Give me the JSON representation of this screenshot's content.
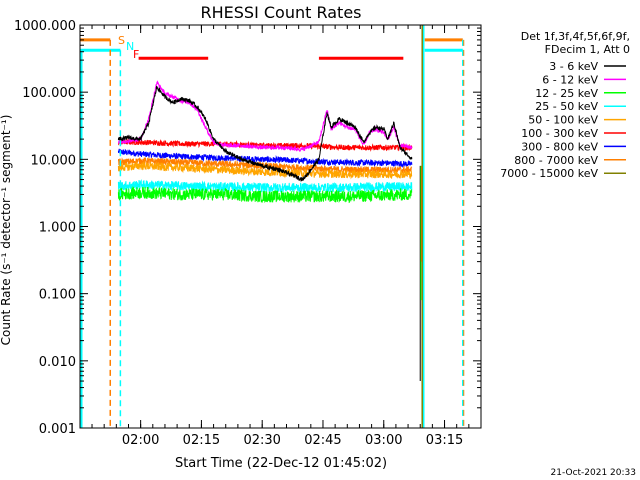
{
  "chart_data": {
    "type": "line",
    "title": "RHESSI Count Rates",
    "xlabel": "Start Time (22-Dec-12 01:45:02)",
    "ylabel": "Count Rate (s⁻¹ detector⁻¹ segment⁻¹)",
    "x_ticks": [
      "02:00",
      "02:15",
      "02:30",
      "02:45",
      "03:00",
      "03:15"
    ],
    "y_ticks": [
      "0.001",
      "0.010",
      "0.100",
      "1.000",
      "10.000",
      "100.000",
      "1000.000"
    ],
    "y_scale": "log",
    "ylim": [
      0.001,
      1000
    ],
    "xlim": [
      "01:45:02",
      "03:24"
    ],
    "legend_header": [
      "Det 1f,3f,4f,5f,6f,9f,",
      "FDecim 1, Att 0"
    ],
    "legend_position": "right",
    "series": [
      {
        "name": "3 - 6 keV",
        "color": "#000000",
        "points": [
          [
            "01:54:30",
            20
          ],
          [
            "01:57:00",
            21
          ],
          [
            "02:00:00",
            20
          ],
          [
            "02:02:00",
            35
          ],
          [
            "02:04:00",
            120
          ],
          [
            "02:06:00",
            85
          ],
          [
            "02:08:00",
            70
          ],
          [
            "02:10:00",
            80
          ],
          [
            "02:12:00",
            75
          ],
          [
            "02:14:00",
            60
          ],
          [
            "02:16:00",
            40
          ],
          [
            "02:18:00",
            20
          ],
          [
            "02:21:00",
            13
          ],
          [
            "02:25:00",
            10
          ],
          [
            "02:30:00",
            8
          ],
          [
            "02:34:00",
            7
          ],
          [
            "02:37:00",
            6
          ],
          [
            "02:40:00",
            5
          ],
          [
            "02:42:00",
            7
          ],
          [
            "02:44:00",
            10
          ],
          [
            "02:46:00",
            50
          ],
          [
            "02:47:00",
            30
          ],
          [
            "02:49:00",
            40
          ],
          [
            "02:51:00",
            35
          ],
          [
            "02:53:00",
            30
          ],
          [
            "02:55:00",
            18
          ],
          [
            "02:56:30",
            25
          ],
          [
            "02:58:00",
            30
          ],
          [
            "03:00:00",
            28
          ],
          [
            "03:01:00",
            20
          ],
          [
            "03:02:30",
            35
          ],
          [
            "03:04:00",
            15
          ],
          [
            "03:07:00",
            10
          ]
        ]
      },
      {
        "name": "6 - 12 keV",
        "color": "#ff00ff",
        "points": [
          [
            "01:54:30",
            18
          ],
          [
            "01:57:00",
            19
          ],
          [
            "02:00:00",
            20
          ],
          [
            "02:02:00",
            40
          ],
          [
            "02:04:00",
            140
          ],
          [
            "02:06:00",
            95
          ],
          [
            "02:08:00",
            85
          ],
          [
            "02:10:00",
            75
          ],
          [
            "02:12:00",
            70
          ],
          [
            "02:14:00",
            55
          ],
          [
            "02:16:00",
            30
          ],
          [
            "02:18:00",
            18
          ],
          [
            "02:21:00",
            16
          ],
          [
            "02:25:00",
            16
          ],
          [
            "02:30:00",
            15
          ],
          [
            "02:35:00",
            15
          ],
          [
            "02:40:00",
            14
          ],
          [
            "02:44:00",
            18
          ],
          [
            "02:46:00",
            55
          ],
          [
            "02:47:00",
            28
          ],
          [
            "02:49:00",
            35
          ],
          [
            "02:51:00",
            30
          ],
          [
            "02:53:00",
            28
          ],
          [
            "02:55:00",
            16
          ],
          [
            "02:56:30",
            25
          ],
          [
            "02:58:00",
            28
          ],
          [
            "03:00:00",
            25
          ],
          [
            "03:01:00",
            20
          ],
          [
            "03:02:30",
            30
          ],
          [
            "03:04:00",
            16
          ],
          [
            "03:07:00",
            15
          ]
        ]
      },
      {
        "name": "12 - 25 keV",
        "color": "#00ff00",
        "points": [
          [
            "01:54:30",
            3.0
          ],
          [
            "02:00:00",
            3.2
          ],
          [
            "02:10:00",
            3.0
          ],
          [
            "02:20:00",
            3.0
          ],
          [
            "02:30:00",
            2.8
          ],
          [
            "02:40:00",
            2.8
          ],
          [
            "02:50:00",
            2.8
          ],
          [
            "03:00:00",
            2.9
          ],
          [
            "03:07:00",
            3.0
          ]
        ]
      },
      {
        "name": "25 - 50 keV",
        "color": "#00ffff",
        "points": [
          [
            "01:54:30",
            4.0
          ],
          [
            "02:00:00",
            4.2
          ],
          [
            "02:10:00",
            4.0
          ],
          [
            "02:20:00",
            3.9
          ],
          [
            "02:30:00",
            3.8
          ],
          [
            "02:40:00",
            3.8
          ],
          [
            "02:50:00",
            3.8
          ],
          [
            "03:00:00",
            3.9
          ],
          [
            "03:07:00",
            3.9
          ]
        ]
      },
      {
        "name": "50 - 100 keV",
        "color": "#ffa500",
        "points": [
          [
            "01:54:30",
            7.5
          ],
          [
            "02:00:00",
            8
          ],
          [
            "02:10:00",
            7.5
          ],
          [
            "02:20:00",
            7
          ],
          [
            "02:30:00",
            6.5
          ],
          [
            "02:40:00",
            6.2
          ],
          [
            "02:50:00",
            6
          ],
          [
            "03:00:00",
            6
          ],
          [
            "03:07:00",
            6
          ]
        ]
      },
      {
        "name": "100 - 300 keV",
        "color": "#ff0000",
        "points": [
          [
            "01:54:30",
            18
          ],
          [
            "02:00:00",
            18
          ],
          [
            "02:10:00",
            17
          ],
          [
            "02:20:00",
            17
          ],
          [
            "02:30:00",
            16
          ],
          [
            "02:40:00",
            16
          ],
          [
            "02:50:00",
            15
          ],
          [
            "03:00:00",
            15
          ],
          [
            "03:07:00",
            15
          ]
        ]
      },
      {
        "name": "300 - 800 keV",
        "color": "#0000ff",
        "points": [
          [
            "01:54:30",
            13
          ],
          [
            "02:00:00",
            12
          ],
          [
            "02:10:00",
            11
          ],
          [
            "02:20:00",
            10.5
          ],
          [
            "02:30:00",
            10
          ],
          [
            "02:40:00",
            9.5
          ],
          [
            "02:50:00",
            9
          ],
          [
            "03:00:00",
            8.8
          ],
          [
            "03:07:00",
            8.5
          ]
        ]
      },
      {
        "name": "800 - 7000 keV",
        "color": "#ff7f00",
        "points": [
          [
            "01:54:30",
            9
          ],
          [
            "02:00:00",
            9.5
          ],
          [
            "02:10:00",
            9
          ],
          [
            "02:20:00",
            8.5
          ],
          [
            "02:30:00",
            8
          ],
          [
            "02:40:00",
            7.5
          ],
          [
            "02:50:00",
            7
          ],
          [
            "03:00:00",
            7
          ],
          [
            "03:07:00",
            7
          ]
        ]
      },
      {
        "name": "7000 - 15000 keV",
        "color": "#808000",
        "points": []
      }
    ],
    "markers": [
      {
        "label": "S",
        "color": "#ff7f00",
        "x": "01:52:30",
        "style": "dashed"
      },
      {
        "label": "N",
        "color": "#00ffff",
        "x": "01:55:00",
        "style": "dashed"
      },
      {
        "label": "F",
        "color": "#ff0000",
        "x": null,
        "style": "text"
      }
    ],
    "flare_bars": [
      {
        "color": "#ff0000",
        "x_start": "01:59:30",
        "x_end": "02:16:40",
        "y": 320
      },
      {
        "color": "#ff0000",
        "x_start": "02:44:00",
        "x_end": "03:04:50",
        "y": 320
      }
    ],
    "attenuator_levels": [
      {
        "color": "#ff7f00",
        "y": 600
      },
      {
        "color": "#00ffff",
        "y": 420
      }
    ],
    "data_gap": {
      "start": "03:09:00",
      "end": "03:19:30"
    }
  },
  "footer_timestamp": "21-Oct-2021 20:33"
}
